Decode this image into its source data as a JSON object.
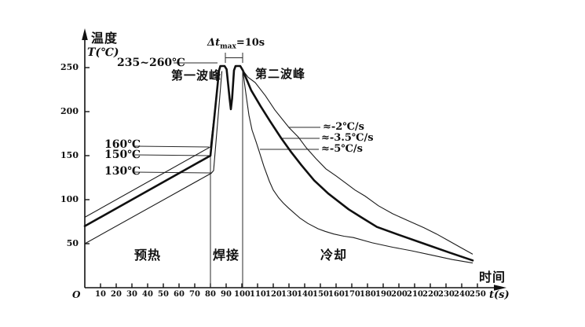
{
  "figure": {
    "y_axis": {
      "title": "温度",
      "unit_label": "T(℃)",
      "ticks": [
        "250",
        "200",
        "150",
        "100",
        "50"
      ]
    },
    "x_axis": {
      "title": "时间",
      "unit_label": "t(s)",
      "origin_label": "O",
      "ticks": [
        "10",
        "20",
        "30",
        "40",
        "50",
        "60",
        "70",
        "80",
        "90",
        "100",
        "110",
        "120",
        "130",
        "140",
        "150",
        "160",
        "170",
        "180",
        "190",
        "200",
        "210",
        "220",
        "230",
        "240",
        "250"
      ]
    },
    "regions": {
      "preheat": "预热",
      "soldering": "焊接",
      "cooling": "冷却"
    },
    "annotations": {
      "peak_temp_range": "235~260℃",
      "first_peak": "第一波峰",
      "second_peak": "第二波峰",
      "delta_t_prefix": "Δt",
      "delta_t_sub": "max",
      "delta_t_suffix": "=10s",
      "preheat_upper_temp": "160℃",
      "preheat_mid_temp": "150℃",
      "preheat_lower_temp": "130℃",
      "cooling_rate_slow": "≈-2℃/s",
      "cooling_rate_mid": "≈-3.5℃/s",
      "cooling_rate_fast": "≈-5℃/s"
    },
    "colors": {
      "line": "#1a1a1a",
      "background": "#ffffff"
    }
  },
  "chart_data": {
    "type": "line",
    "xlabel": "时间 t(s)",
    "ylabel": "温度 T(℃)",
    "xlim": [
      0,
      250
    ],
    "ylim": [
      0,
      270
    ],
    "x_ticks": [
      10,
      20,
      30,
      40,
      50,
      60,
      70,
      80,
      90,
      100,
      110,
      120,
      130,
      140,
      150,
      160,
      170,
      180,
      190,
      200,
      210,
      220,
      230,
      240,
      250
    ],
    "y_ticks": [
      50,
      100,
      150,
      200,
      250
    ],
    "grid": false,
    "legend_position": "none",
    "stages": [
      {
        "label": "预热",
        "t_range": [
          0,
          80
        ]
      },
      {
        "label": "焊接",
        "t_range": [
          80,
          100
        ]
      },
      {
        "label": "冷却",
        "t_range": [
          100,
          250
        ]
      }
    ],
    "peak_temperature_range_c": "235~260",
    "twin_peak_separation": "Δtmax=10s",
    "dip_between_peaks_c": 200,
    "cooling_rates_c_per_s": [
      -2,
      -3.5,
      -5
    ],
    "series": [
      {
        "name": "preheat-upper-limit (80→160℃)",
        "style": "thin",
        "points": [
          [
            0,
            80
          ],
          [
            80,
            160
          ],
          [
            85.7,
            247.5
          ]
        ]
      },
      {
        "name": "preheat-lower-limit (50→130℃)",
        "style": "thin",
        "points": [
          [
            0,
            50
          ],
          [
            80.5,
            130
          ],
          [
            82,
            133
          ],
          [
            87.3,
            246
          ]
        ]
      },
      {
        "name": "nominal-profile (70→150℃, twin 250℃ peaks, ≈-3.5℃/s cooling)",
        "style": "thick",
        "points": [
          [
            0,
            70
          ],
          [
            80,
            150
          ],
          [
            85.5,
            247
          ],
          [
            86.3,
            251.8
          ],
          [
            89,
            251.8
          ],
          [
            90.3,
            248
          ],
          [
            92.2,
            215
          ],
          [
            93,
            202.7
          ],
          [
            93.8,
            215
          ],
          [
            95,
            247
          ],
          [
            96,
            251.8
          ],
          [
            99,
            251.8
          ],
          [
            100.6,
            247
          ],
          [
            106,
            224
          ],
          [
            112,
            206
          ],
          [
            118,
            189
          ],
          [
            125,
            170
          ],
          [
            131,
            155
          ],
          [
            138,
            139
          ],
          [
            146,
            122
          ],
          [
            155,
            107
          ],
          [
            168,
            89
          ],
          [
            176,
            80
          ],
          [
            186,
            69
          ],
          [
            200,
            60
          ],
          [
            216,
            50
          ],
          [
            232,
            40
          ],
          [
            247,
            31
          ]
        ]
      },
      {
        "name": "cooling ≈-2℃/s",
        "style": "thin",
        "points": [
          [
            100.6,
            247
          ],
          [
            104,
            239
          ],
          [
            108.5,
            233
          ],
          [
            115,
            218
          ],
          [
            121,
            202
          ],
          [
            130,
            182
          ],
          [
            136,
            171
          ],
          [
            141,
            159
          ],
          [
            147,
            147
          ],
          [
            153.5,
            135
          ],
          [
            160,
            127
          ],
          [
            166,
            119
          ],
          [
            172,
            111
          ],
          [
            178.5,
            104
          ],
          [
            187,
            93
          ],
          [
            196,
            84
          ],
          [
            206,
            76
          ],
          [
            216,
            68
          ],
          [
            224,
            61
          ],
          [
            231,
            54
          ],
          [
            239,
            46
          ],
          [
            247,
            38
          ]
        ]
      },
      {
        "name": "cooling ≈-5℃/s",
        "style": "thin",
        "points": [
          [
            100.6,
            247
          ],
          [
            102,
            228
          ],
          [
            103,
            215
          ],
          [
            104.5,
            196
          ],
          [
            106.5,
            179
          ],
          [
            109,
            166
          ],
          [
            111,
            155
          ],
          [
            114,
            138
          ],
          [
            117.5,
            121
          ],
          [
            120,
            111
          ],
          [
            123.5,
            102
          ],
          [
            126.5,
            96
          ],
          [
            130,
            90
          ],
          [
            137,
            79
          ],
          [
            142,
            73
          ],
          [
            148.5,
            67
          ],
          [
            153,
            64
          ],
          [
            158.5,
            61
          ],
          [
            165,
            58.5
          ],
          [
            171,
            57
          ],
          [
            183,
            51
          ],
          [
            196,
            46
          ],
          [
            208,
            42
          ],
          [
            221,
            37
          ],
          [
            234,
            32
          ],
          [
            247,
            28
          ]
        ]
      }
    ]
  }
}
